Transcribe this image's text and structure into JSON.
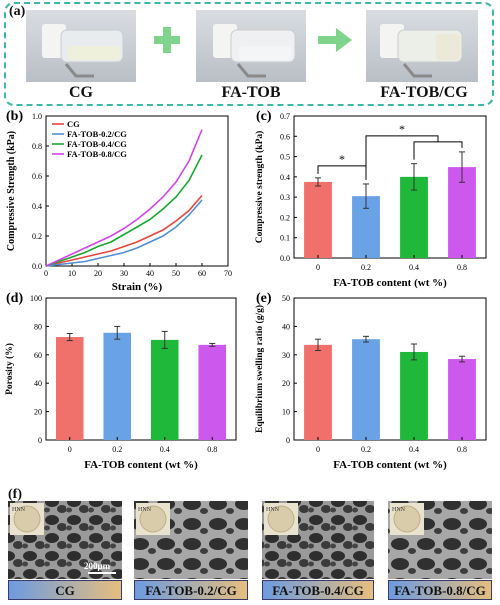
{
  "panel_a": {
    "label": "(a)",
    "items": [
      "CG",
      "FA-TOB",
      "FA-TOB/CG"
    ]
  },
  "panel_f": {
    "label": "(f)",
    "captions": [
      "CG",
      "FA-TOB-0.2/CG",
      "FA-TOB-0.4/CG",
      "FA-TOB-0.8/CG"
    ],
    "scale_text": "200μm",
    "inset_letters": "HNN"
  },
  "chart_data": [
    {
      "panel": "(b)",
      "type": "line",
      "xlabel": "Strain (%)",
      "ylabel": "Compressive Strength (kPa)",
      "xlim": [
        0,
        70
      ],
      "ylim": [
        0,
        1.0
      ],
      "xticks": [
        0,
        10,
        20,
        30,
        40,
        50,
        60,
        70
      ],
      "yticks": [
        0.0,
        0.2,
        0.4,
        0.6,
        0.8,
        1.0
      ],
      "legend_position": "top-left",
      "series": [
        {
          "name": "CG",
          "color": "#e8453c",
          "x": [
            0,
            5,
            10,
            15,
            20,
            25,
            30,
            35,
            40,
            45,
            50,
            55,
            60
          ],
          "y": [
            0,
            0.02,
            0.04,
            0.06,
            0.08,
            0.1,
            0.13,
            0.16,
            0.2,
            0.24,
            0.3,
            0.37,
            0.47
          ]
        },
        {
          "name": "FA-TOB-0.2/CG",
          "color": "#4f8fd6",
          "x": [
            0,
            5,
            10,
            15,
            20,
            25,
            30,
            35,
            40,
            45,
            50,
            55,
            60
          ],
          "y": [
            0,
            0.01,
            0.02,
            0.03,
            0.05,
            0.07,
            0.09,
            0.12,
            0.16,
            0.2,
            0.26,
            0.34,
            0.44
          ]
        },
        {
          "name": "FA-TOB-0.4/CG",
          "color": "#16a82c",
          "x": [
            0,
            5,
            10,
            15,
            20,
            25,
            30,
            35,
            40,
            45,
            50,
            55,
            60
          ],
          "y": [
            0,
            0.03,
            0.06,
            0.09,
            0.13,
            0.16,
            0.21,
            0.26,
            0.31,
            0.38,
            0.46,
            0.57,
            0.74
          ]
        },
        {
          "name": "FA-TOB-0.8/CG",
          "color": "#cf44e6",
          "x": [
            0,
            5,
            10,
            15,
            20,
            25,
            30,
            35,
            40,
            45,
            50,
            55,
            60
          ],
          "y": [
            0,
            0.04,
            0.08,
            0.12,
            0.16,
            0.2,
            0.25,
            0.31,
            0.38,
            0.46,
            0.56,
            0.7,
            0.91
          ]
        }
      ]
    },
    {
      "panel": "(c)",
      "type": "bar",
      "xlabel": "FA-TOB content (wt %)",
      "ylabel": "Compressive strength (kPa)",
      "categories": [
        "0",
        "0.2",
        "0.4",
        "0.8"
      ],
      "values": [
        0.375,
        0.305,
        0.4,
        0.448
      ],
      "errors": [
        0.02,
        0.06,
        0.065,
        0.075
      ],
      "colors": [
        "#f0716b",
        "#6aa2e6",
        "#20b83a",
        "#cd58ee"
      ],
      "ylim": [
        0,
        0.7
      ],
      "yticks": [
        0.0,
        0.1,
        0.2,
        0.3,
        0.4,
        0.5,
        0.6,
        0.7
      ],
      "annotations": [
        "*",
        "*"
      ]
    },
    {
      "panel": "(d)",
      "type": "bar",
      "xlabel": "FA-TOB content (wt %)",
      "ylabel": "Porosity (%)",
      "categories": [
        "0",
        "0.2",
        "0.4",
        "0.8"
      ],
      "values": [
        72.5,
        75.5,
        70.5,
        67.0
      ],
      "errors": [
        2.5,
        4.5,
        6.0,
        1.0
      ],
      "colors": [
        "#f0716b",
        "#6aa2e6",
        "#20b83a",
        "#cd58ee"
      ],
      "ylim": [
        0,
        100
      ],
      "yticks": [
        0,
        20,
        40,
        60,
        80,
        100
      ]
    },
    {
      "panel": "(e)",
      "type": "bar",
      "xlabel": "FA-TOB content (wt %)",
      "ylabel": "Equilibrium swelling ratio (g/g)",
      "categories": [
        "0",
        "0.2",
        "0.4",
        "0.8"
      ],
      "values": [
        33.5,
        35.5,
        31.0,
        28.5
      ],
      "errors": [
        2.0,
        1.0,
        2.8,
        1.0
      ],
      "colors": [
        "#f0716b",
        "#6aa2e6",
        "#20b83a",
        "#cd58ee"
      ],
      "ylim": [
        0,
        50
      ],
      "yticks": [
        0,
        10,
        20,
        30,
        40,
        50
      ]
    }
  ]
}
